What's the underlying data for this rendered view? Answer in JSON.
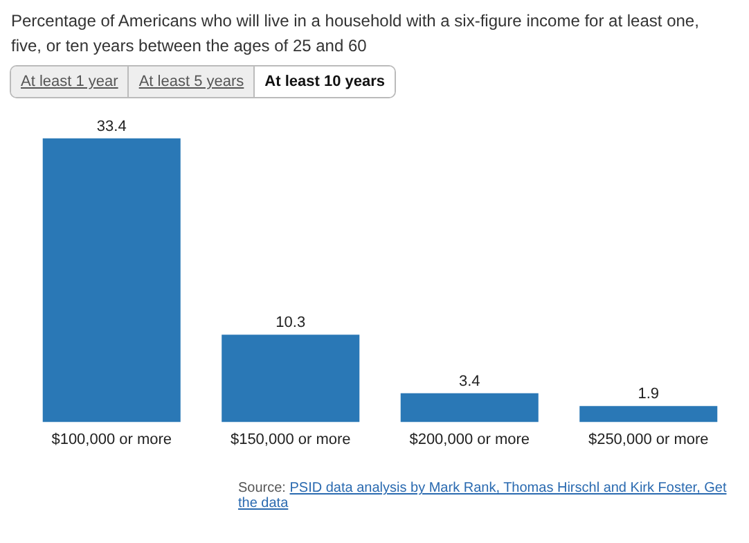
{
  "chart_data": {
    "type": "bar",
    "title": "Percentage of Americans who will live in a household with a six-figure income for at least one, five, or ten years between the ages of 25 and 60",
    "categories": [
      "$100,000 or more",
      "$150,000 or more",
      "$200,000 or more",
      "$250,000 or more"
    ],
    "values": [
      33.4,
      10.3,
      3.4,
      1.9
    ],
    "color": "#2a78b6",
    "data_labels": true,
    "relative": false,
    "annotations": [
      "At least 1 year",
      "At least 5 years",
      "At least 10 years",
      "Source: PSID data analysis by Mark Rank, Thomas Hirschl and Kirk Foster, Get the data"
    ]
  }
}
